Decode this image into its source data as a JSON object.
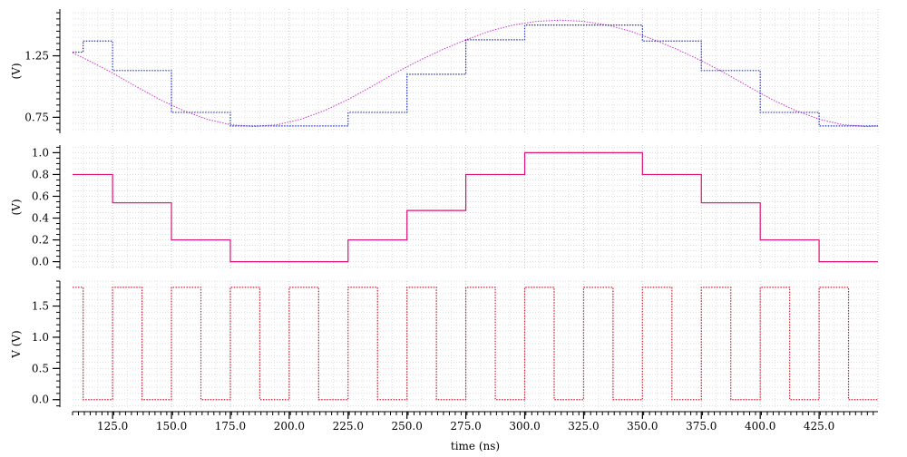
{
  "chart_data": [
    {
      "type": "line",
      "panel": "top",
      "ylabel": "(V)",
      "yticks": [
        0.75,
        1.25
      ],
      "ylim": [
        0.62,
        1.63
      ],
      "xlim": [
        108,
        450
      ],
      "grid": true,
      "series": [
        {
          "style": "sine",
          "color": "#cc33cc",
          "x": [
            108,
            115,
            125,
            135,
            145,
            155,
            165,
            175,
            185,
            195,
            205,
            215,
            225,
            235,
            245,
            255,
            265,
            275,
            285,
            295,
            305,
            315,
            325,
            335,
            345,
            355,
            365,
            375,
            385,
            395,
            405,
            415,
            425,
            435,
            445,
            450
          ],
          "values": [
            1.275,
            1.21,
            1.11,
            1.0,
            0.895,
            0.805,
            0.735,
            0.69,
            0.675,
            0.69,
            0.735,
            0.805,
            0.895,
            1.0,
            1.11,
            1.21,
            1.3,
            1.38,
            1.45,
            1.5,
            1.53,
            1.54,
            1.53,
            1.5,
            1.45,
            1.38,
            1.3,
            1.21,
            1.11,
            1.0,
            0.895,
            0.805,
            0.735,
            0.69,
            0.675,
            0.68
          ]
        },
        {
          "style": "staircase",
          "color": "#2233cc",
          "x": [
            108,
            112.5,
            112.5,
            125,
            125,
            137.5,
            137.5,
            150,
            150,
            162.5,
            162.5,
            175,
            175,
            187.5,
            187.5,
            200,
            200,
            212.5,
            212.5,
            225,
            225,
            237.5,
            237.5,
            250,
            250,
            262.5,
            262.5,
            275,
            275,
            287.5,
            287.5,
            300,
            300,
            312.5,
            312.5,
            325,
            325,
            337.5,
            337.5,
            350,
            350,
            362.5,
            362.5,
            375,
            375,
            387.5,
            387.5,
            400,
            400,
            412.5,
            412.5,
            425,
            425,
            437.5,
            437.5,
            450
          ],
          "values": [
            1.28,
            1.28,
            1.37,
            1.37,
            1.13,
            1.13,
            1.13,
            1.13,
            0.79,
            0.79,
            0.79,
            0.79,
            0.68,
            0.68,
            0.68,
            0.68,
            0.68,
            0.68,
            0.68,
            0.68,
            0.79,
            0.79,
            0.79,
            0.79,
            1.1,
            1.1,
            1.1,
            1.1,
            1.38,
            1.38,
            1.38,
            1.38,
            1.5,
            1.5,
            1.5,
            1.5,
            1.5,
            1.5,
            1.5,
            1.5,
            1.37,
            1.37,
            1.37,
            1.37,
            1.13,
            1.13,
            1.13,
            1.13,
            0.79,
            0.79,
            0.79,
            0.79,
            0.68,
            0.68,
            0.68,
            0.68
          ]
        }
      ]
    },
    {
      "type": "line",
      "panel": "middle",
      "ylabel": "(V)",
      "yticks": [
        0.0,
        0.2,
        0.4,
        0.6,
        0.8,
        1.0
      ],
      "ylim": [
        -0.07,
        1.07
      ],
      "xlim": [
        108,
        450
      ],
      "grid": true,
      "series": [
        {
          "style": "step",
          "color": "#dd1177",
          "x": [
            108,
            125,
            125,
            150,
            150,
            175,
            175,
            225,
            225,
            250,
            250,
            275,
            275,
            300,
            300,
            350,
            350,
            375,
            375,
            400,
            400,
            425,
            425,
            450
          ],
          "values": [
            0.8,
            0.8,
            0.54,
            0.54,
            0.2,
            0.2,
            0.0,
            0.0,
            0.2,
            0.2,
            0.47,
            0.47,
            0.8,
            0.8,
            1.0,
            1.0,
            0.8,
            0.8,
            0.54,
            0.54,
            0.2,
            0.2,
            0.0,
            0.0
          ]
        }
      ]
    },
    {
      "type": "line",
      "panel": "bottom",
      "ylabel": "V (V)",
      "yticks": [
        0.0,
        0.5,
        1.0,
        1.5
      ],
      "ylim": [
        -0.12,
        1.9
      ],
      "xlim": [
        108,
        450
      ],
      "xlabel": "time (ns)",
      "xticks": [
        "125.0",
        "150.0",
        "175.0",
        "200.0",
        "225.0",
        "250.0",
        "275.0",
        "300.0",
        "325.0",
        "350.0",
        "375.0",
        "400.0",
        "425.0"
      ],
      "grid": true,
      "series": [
        {
          "style": "clock",
          "color": "#cc2233",
          "x": [
            108,
            112.5,
            112.5,
            125,
            125,
            137.5,
            137.5,
            150,
            150,
            162.5,
            162.5,
            175,
            175,
            187.5,
            187.5,
            200,
            200,
            212.5,
            212.5,
            225,
            225,
            237.5,
            237.5,
            250,
            250,
            262.5,
            262.5,
            275,
            275,
            287.5,
            287.5,
            300,
            300,
            312.5,
            312.5,
            325,
            325,
            337.5,
            337.5,
            350,
            350,
            362.5,
            362.5,
            375,
            375,
            387.5,
            387.5,
            400,
            400,
            412.5,
            412.5,
            425,
            425,
            437.5,
            437.5,
            450
          ],
          "values": [
            1.8,
            1.8,
            0.0,
            0.0,
            1.8,
            1.8,
            0.0,
            0.0,
            1.8,
            1.8,
            0.0,
            0.0,
            1.8,
            1.8,
            0.0,
            0.0,
            1.8,
            1.8,
            0.0,
            0.0,
            1.8,
            1.8,
            0.0,
            0.0,
            1.8,
            1.8,
            0.0,
            0.0,
            1.8,
            1.8,
            0.0,
            0.0,
            1.8,
            1.8,
            0.0,
            0.0,
            1.8,
            1.8,
            0.0,
            0.0,
            1.8,
            1.8,
            0.0,
            0.0,
            1.8,
            1.8,
            0.0,
            0.0,
            1.8,
            1.8,
            0.0,
            0.0,
            1.8,
            1.8,
            0.0,
            0.0
          ]
        }
      ]
    }
  ]
}
